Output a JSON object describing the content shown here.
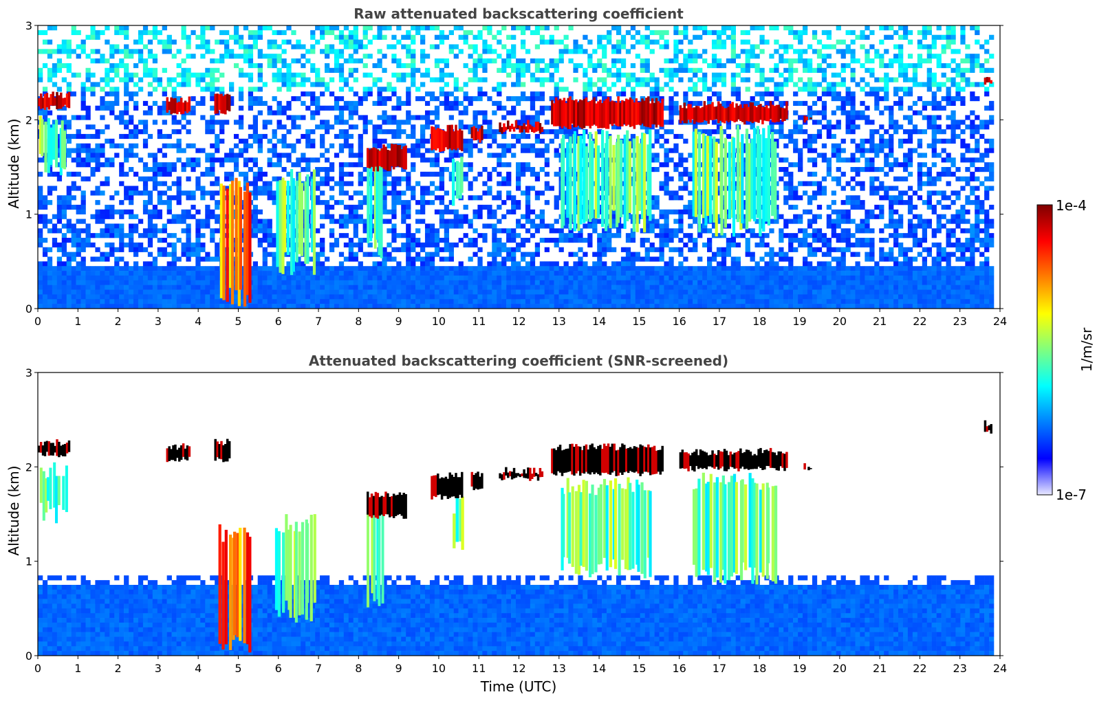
{
  "colors": {
    "jet": [
      "#00007f",
      "#0000ff",
      "#007fff",
      "#00ffff",
      "#7fff7f",
      "#ffff00",
      "#ff7f00",
      "#ff0000",
      "#7f0000"
    ],
    "low_end": "#e8e8ff",
    "saturated_bottom": "#000000"
  },
  "chart_data": [
    {
      "type": "heatmap",
      "title": "Raw attenuated backscattering coefficient",
      "xlabel": "",
      "ylabel": "Altitude (km)",
      "xlim": [
        0,
        24
      ],
      "ylim": [
        0,
        3
      ],
      "xticks": [
        "0",
        "1",
        "2",
        "3",
        "4",
        "5",
        "6",
        "7",
        "8",
        "9",
        "10",
        "11",
        "12",
        "13",
        "14",
        "15",
        "16",
        "17",
        "18",
        "19",
        "20",
        "21",
        "22",
        "23",
        "24"
      ],
      "yticks": [
        "0",
        "1",
        "2",
        "3"
      ],
      "screened": false,
      "cloud_layers": [
        {
          "t0": 0.0,
          "t1": 0.8,
          "base_km": 2.1,
          "top_km": 2.3
        },
        {
          "t0": 3.2,
          "t1": 3.8,
          "base_km": 2.05,
          "top_km": 2.25
        },
        {
          "t0": 4.4,
          "t1": 4.8,
          "base_km": 2.05,
          "top_km": 2.3
        },
        {
          "t0": 8.2,
          "t1": 9.2,
          "base_km": 1.45,
          "top_km": 1.75
        },
        {
          "t0": 9.8,
          "t1": 10.6,
          "base_km": 1.65,
          "top_km": 1.95
        },
        {
          "t0": 10.8,
          "t1": 11.1,
          "base_km": 1.75,
          "top_km": 1.95
        },
        {
          "t0": 11.5,
          "t1": 12.6,
          "base_km": 1.85,
          "top_km": 2.0
        },
        {
          "t0": 12.8,
          "t1": 15.6,
          "base_km": 1.9,
          "top_km": 2.25
        },
        {
          "t0": 16.0,
          "t1": 18.7,
          "base_km": 1.95,
          "top_km": 2.2
        },
        {
          "t0": 19.1,
          "t1": 19.3,
          "base_km": 1.95,
          "top_km": 2.05
        },
        {
          "t0": 23.6,
          "t1": 23.8,
          "base_km": 2.35,
          "top_km": 2.5
        }
      ],
      "precipitation_shafts": [
        {
          "t0": 4.5,
          "t1": 5.3,
          "base_km": 0.0,
          "top_km": 1.4
        },
        {
          "t0": 5.9,
          "t1": 6.9,
          "base_km": 0.35,
          "top_km": 1.5
        },
        {
          "t0": 8.2,
          "t1": 8.6,
          "base_km": 0.5,
          "top_km": 1.7
        },
        {
          "t0": 10.3,
          "t1": 10.6,
          "base_km": 1.0,
          "top_km": 1.7
        },
        {
          "t0": 13.0,
          "t1": 15.3,
          "base_km": 0.8,
          "top_km": 1.9
        },
        {
          "t0": 16.3,
          "t1": 18.4,
          "base_km": 0.75,
          "top_km": 1.95
        },
        {
          "t0": 0.0,
          "t1": 0.7,
          "base_km": 1.4,
          "top_km": 2.05
        }
      ],
      "boundary_layer_top_km": 0.45
    },
    {
      "type": "heatmap",
      "title": "Attenuated backscattering coefficient (SNR-screened)",
      "xlabel": "Time (UTC)",
      "ylabel": "Altitude (km)",
      "xlim": [
        0,
        24
      ],
      "ylim": [
        0,
        3
      ],
      "xticks": [
        "0",
        "1",
        "2",
        "3",
        "4",
        "5",
        "6",
        "7",
        "8",
        "9",
        "10",
        "11",
        "12",
        "13",
        "14",
        "15",
        "16",
        "17",
        "18",
        "19",
        "20",
        "21",
        "22",
        "23",
        "24"
      ],
      "yticks": [
        "0",
        "1",
        "2",
        "3"
      ],
      "screened": true,
      "boundary_layer_top_km": 0.75,
      "cloud_layers": [
        {
          "t0": 0.0,
          "t1": 0.8,
          "base_km": 2.1,
          "top_km": 2.3
        },
        {
          "t0": 3.2,
          "t1": 3.8,
          "base_km": 2.05,
          "top_km": 2.25
        },
        {
          "t0": 4.4,
          "t1": 4.8,
          "base_km": 2.05,
          "top_km": 2.3
        },
        {
          "t0": 8.2,
          "t1": 9.2,
          "base_km": 1.45,
          "top_km": 1.75
        },
        {
          "t0": 9.8,
          "t1": 10.6,
          "base_km": 1.65,
          "top_km": 1.95
        },
        {
          "t0": 10.8,
          "t1": 11.1,
          "base_km": 1.75,
          "top_km": 1.95
        },
        {
          "t0": 11.5,
          "t1": 12.6,
          "base_km": 1.85,
          "top_km": 2.0
        },
        {
          "t0": 12.8,
          "t1": 15.6,
          "base_km": 1.9,
          "top_km": 2.25
        },
        {
          "t0": 16.0,
          "t1": 18.7,
          "base_km": 1.95,
          "top_km": 2.2
        },
        {
          "t0": 19.1,
          "t1": 19.3,
          "base_km": 1.95,
          "top_km": 2.05
        },
        {
          "t0": 23.6,
          "t1": 23.8,
          "base_km": 2.35,
          "top_km": 2.5
        }
      ],
      "precipitation_shafts": [
        {
          "t0": 4.5,
          "t1": 5.3,
          "base_km": 0.0,
          "top_km": 1.4
        },
        {
          "t0": 5.9,
          "t1": 6.9,
          "base_km": 0.35,
          "top_km": 1.5
        },
        {
          "t0": 8.2,
          "t1": 8.6,
          "base_km": 0.5,
          "top_km": 1.7
        },
        {
          "t0": 10.3,
          "t1": 10.6,
          "base_km": 1.0,
          "top_km": 1.7
        },
        {
          "t0": 13.0,
          "t1": 15.3,
          "base_km": 0.8,
          "top_km": 1.9
        },
        {
          "t0": 16.3,
          "t1": 18.4,
          "base_km": 0.75,
          "top_km": 1.95
        },
        {
          "t0": 0.0,
          "t1": 0.7,
          "base_km": 1.4,
          "top_km": 2.05
        }
      ]
    }
  ],
  "colorbar": {
    "max_label": "1e-4",
    "min_label": "1e-7",
    "unit_label": "1/m/sr",
    "range": [
      1e-07,
      0.0001
    ],
    "scale": "log"
  }
}
